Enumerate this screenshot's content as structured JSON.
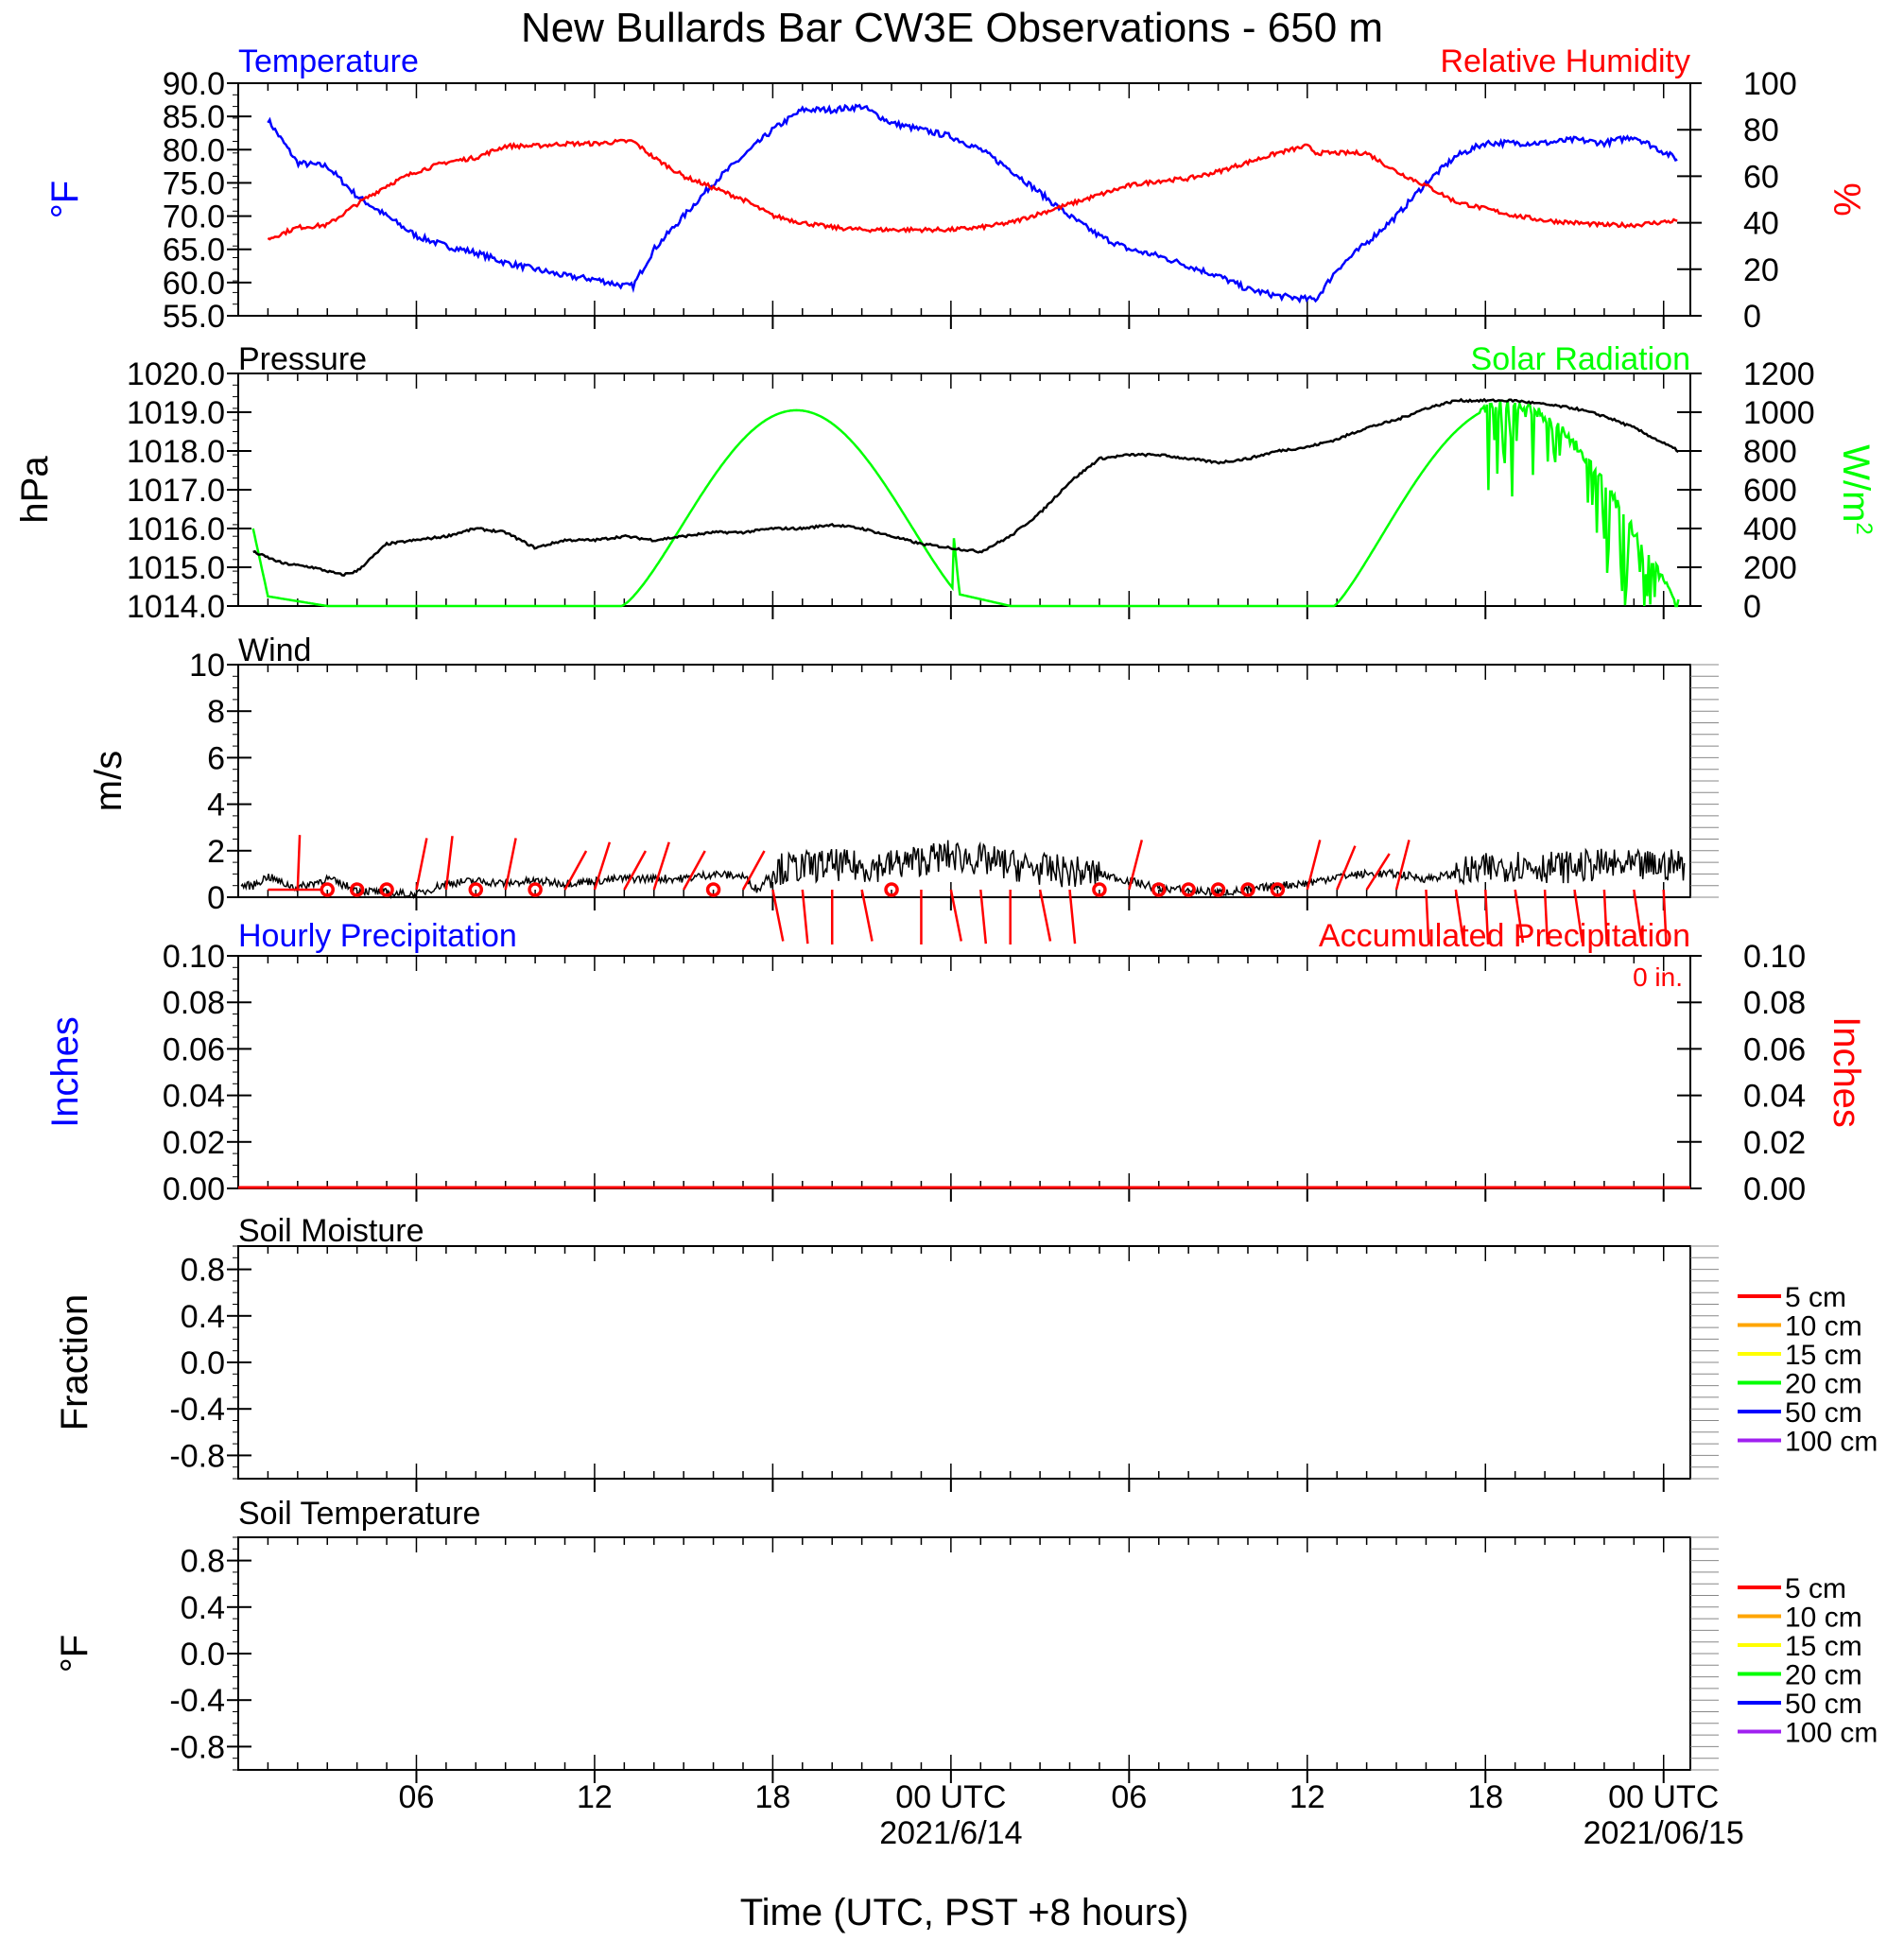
{
  "title": "New Bullards Bar CW3E Observations - 650 m",
  "x_axis": {
    "label": "Time (UTC, PST +8 hours)",
    "ticks": [
      "06",
      "12",
      "18",
      "00 UTC",
      "06",
      "12",
      "18",
      "00 UTC"
    ],
    "dates": [
      "2021/6/14",
      "2021/06/15"
    ]
  },
  "colors": {
    "temperature": "#0000ff",
    "humidity": "#ff0000",
    "pressure": "#000000",
    "solar": "#00ff00",
    "wind": "#000000",
    "barb": "#ff0000",
    "precip_hourly": "#0000ff",
    "precip_accum": "#ff0000"
  },
  "chart_data": [
    {
      "id": "temp-rh",
      "type": "line",
      "left_title": "Temperature",
      "right_title": "Relative Humidity",
      "ylabel_left": "°F",
      "ylabel_right": "%",
      "ylim_left": [
        55,
        90
      ],
      "ylim_right": [
        0,
        100
      ],
      "left_ticks": [
        "55.0",
        "60.0",
        "65.0",
        "70.0",
        "75.0",
        "80.0",
        "85.0",
        "90.0"
      ],
      "right_ticks": [
        "0",
        "20",
        "40",
        "60",
        "80",
        "100"
      ],
      "x_hours": [
        1,
        2,
        3,
        4,
        5,
        6,
        7,
        8,
        9,
        10,
        11,
        12,
        13,
        13.3,
        14,
        15,
        16,
        17,
        18,
        19,
        20,
        21,
        22,
        23,
        24,
        25,
        26,
        27,
        28,
        29,
        30,
        31,
        32,
        33,
        34,
        35,
        36,
        36.3,
        37,
        38,
        39,
        40,
        41,
        42,
        43,
        44,
        45,
        46,
        47,
        48.5
      ],
      "temperature_F": [
        84.5,
        78,
        77.5,
        73,
        70,
        67,
        65.5,
        64.5,
        63,
        62,
        61,
        60.5,
        59.5,
        59.5,
        65,
        70,
        75,
        79,
        83,
        86,
        86,
        86.5,
        84,
        83,
        82,
        80,
        77,
        73.5,
        70,
        67,
        65,
        64,
        62.5,
        61,
        59,
        58,
        57.5,
        57.5,
        62,
        66,
        70,
        75,
        79,
        81,
        81,
        81,
        81.5,
        81,
        82,
        78.5
      ],
      "humidity_pct": [
        33,
        38,
        39,
        48,
        56,
        62,
        66,
        68,
        73,
        73,
        74,
        74,
        75,
        75,
        68,
        60,
        55,
        50,
        43,
        40,
        38,
        37,
        37,
        37,
        37,
        38,
        40,
        44,
        48,
        52,
        56,
        58,
        59,
        62,
        66,
        70,
        73,
        70,
        70,
        70,
        62,
        56,
        49,
        46,
        43,
        41,
        40,
        39,
        39,
        41
      ]
    },
    {
      "id": "pressure-solar",
      "type": "line",
      "left_title": "Pressure",
      "right_title": "Solar Radiation",
      "ylabel_left": "hPa",
      "ylabel_right": "W/m2",
      "ylim_left": [
        1014,
        1020
      ],
      "ylim_right": [
        0,
        1200
      ],
      "left_ticks": [
        "1014.0",
        "1015.0",
        "1016.0",
        "1017.0",
        "1018.0",
        "1019.0",
        "1020.0"
      ],
      "right_ticks": [
        "0",
        "200",
        "400",
        "600",
        "800",
        "1000",
        "1200"
      ],
      "pressure_x": [
        0.5,
        1.5,
        2.5,
        3.5,
        4,
        5,
        6,
        7,
        8,
        9,
        10,
        11,
        12,
        13,
        14,
        15,
        16,
        17,
        18,
        19,
        20,
        21,
        22,
        23,
        24,
        25,
        26,
        27,
        28,
        29,
        30,
        31,
        32,
        33,
        34,
        35,
        36,
        37,
        38,
        39,
        40,
        41,
        42,
        43,
        44,
        45,
        46,
        47,
        48.5
      ],
      "pressure_hPa": [
        1015.4,
        1015.1,
        1015,
        1014.8,
        1014.9,
        1015.6,
        1015.7,
        1015.8,
        1016,
        1015.9,
        1015.5,
        1015.7,
        1015.7,
        1015.8,
        1015.7,
        1015.8,
        1015.9,
        1015.9,
        1016,
        1016,
        1016.1,
        1016,
        1015.8,
        1015.6,
        1015.5,
        1015.4,
        1015.8,
        1016.4,
        1017.2,
        1017.8,
        1017.9,
        1017.9,
        1017.8,
        1017.7,
        1017.8,
        1018,
        1018.1,
        1018.3,
        1018.6,
        1018.8,
        1019.1,
        1019.3,
        1019.3,
        1019.3,
        1019.2,
        1019.1,
        1018.9,
        1018.6,
        1018
      ]
    },
    {
      "id": "wind",
      "type": "line",
      "left_title": "Wind",
      "ylabel_left": "m/s",
      "ylim_left": [
        0,
        10
      ],
      "left_ticks": [
        "0",
        "2",
        "4",
        "6",
        "8",
        "10"
      ],
      "wind_x": [
        0.5,
        1,
        1.5,
        2,
        3,
        4,
        5,
        6,
        7,
        8,
        9,
        10,
        11,
        12,
        13,
        14,
        15,
        16,
        17,
        17.5,
        18,
        19,
        20,
        21,
        22,
        23,
        24,
        25,
        26,
        27,
        28,
        29,
        30,
        31,
        32,
        33,
        34,
        35,
        36,
        37,
        38,
        39,
        40,
        41,
        42,
        43,
        44,
        45,
        46,
        47,
        48.5
      ],
      "wind_speed": [
        0.5,
        0.9,
        0.6,
        0.4,
        0.8,
        0.3,
        0.2,
        0.1,
        0.6,
        0.7,
        0.6,
        0.7,
        0.6,
        0.7,
        0.8,
        0.8,
        0.8,
        1,
        0.9,
        0.3,
        1.2,
        1.3,
        1.4,
        1.3,
        1.4,
        1.6,
        1.8,
        1.6,
        1.4,
        1.2,
        1.1,
        1,
        0.7,
        0.4,
        0.3,
        0.2,
        0.3,
        0.5,
        0.6,
        0.9,
        1,
        1,
        0.8,
        1,
        1.2,
        1.4,
        1.3,
        1.3,
        1.4,
        1.3,
        1.4
      ],
      "calm_hours": [
        3,
        4,
        5,
        8,
        10,
        16,
        22,
        29,
        31,
        32,
        33,
        34,
        35
      ]
    },
    {
      "id": "precip",
      "type": "line",
      "left_title": "Hourly Precipitation",
      "right_title": "Accumulated Precipitation",
      "total_label": "0 in.",
      "ylabel_left": "Inches",
      "ylabel_right": "Inches",
      "ylim_left": [
        0,
        0.1
      ],
      "ylim_right": [
        0,
        0.1
      ],
      "left_ticks": [
        "0.00",
        "0.02",
        "0.04",
        "0.06",
        "0.08",
        "0.10"
      ],
      "right_ticks": [
        "0.00",
        "0.02",
        "0.04",
        "0.06",
        "0.08",
        "0.10"
      ],
      "hourly": [
        0,
        0
      ],
      "accumulated": [
        0,
        0
      ]
    },
    {
      "id": "soil-moisture",
      "type": "line",
      "left_title": "Soil Moisture",
      "ylabel_left": "Fraction",
      "ylim_left": [
        -1,
        1
      ],
      "left_ticks": [
        "-0.8",
        "-0.4",
        "0.0",
        "0.4",
        "0.8"
      ],
      "legend": [
        {
          "name": "5 cm",
          "color": "#ff0000"
        },
        {
          "name": "10 cm",
          "color": "#ffa500"
        },
        {
          "name": "15 cm",
          "color": "#ffff00"
        },
        {
          "name": "20 cm",
          "color": "#00ff00"
        },
        {
          "name": "50 cm",
          "color": "#0000ff"
        },
        {
          "name": "100 cm",
          "color": "#a020f0"
        }
      ]
    },
    {
      "id": "soil-temp",
      "type": "line",
      "left_title": "Soil Temperature",
      "ylabel_left": "°F",
      "ylim_left": [
        -1,
        1
      ],
      "left_ticks": [
        "-0.8",
        "-0.4",
        "0.0",
        "0.4",
        "0.8"
      ],
      "legend": [
        {
          "name": "5 cm",
          "color": "#ff0000"
        },
        {
          "name": "10 cm",
          "color": "#ffa500"
        },
        {
          "name": "15 cm",
          "color": "#ffff00"
        },
        {
          "name": "20 cm",
          "color": "#00ff00"
        },
        {
          "name": "50 cm",
          "color": "#0000ff"
        },
        {
          "name": "100 cm",
          "color": "#a020f0"
        }
      ]
    }
  ]
}
